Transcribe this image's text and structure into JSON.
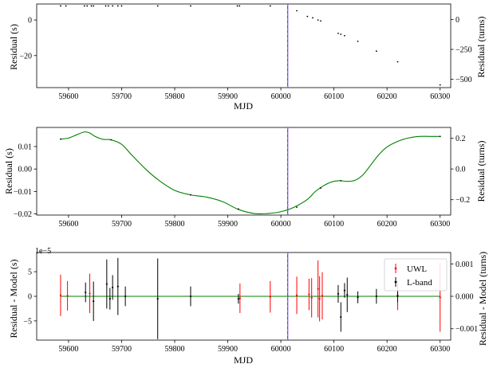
{
  "chart_data": [
    {
      "type": "scatter",
      "xlabel": "MJD",
      "ylabel": "Residual (s)",
      "ylabel_right": "Residual (turns)",
      "xlim": [
        59540,
        60320
      ],
      "ylim": [
        -38,
        9
      ],
      "ylim_right": [
        -570,
        130
      ],
      "xticks": [
        "59600",
        "59700",
        "59800",
        "59900",
        "60000",
        "60100",
        "60200",
        "60300"
      ],
      "yticks": [
        "0",
        "−20"
      ],
      "yticks_right": [
        "0",
        "−250",
        "−500"
      ],
      "marker_line_mjd": 60013,
      "series": [
        {
          "x": [
            59585,
            59595,
            59630,
            59635,
            59643,
            59647,
            59670,
            59675,
            59683,
            59693,
            59700,
            59768,
            59830,
            59918,
            59922,
            59980
          ],
          "y": [
            7.9,
            7.9,
            7.9,
            7.9,
            7.9,
            7.9,
            7.9,
            7.9,
            7.9,
            7.9,
            7.9,
            7.9,
            7.9,
            7.9,
            7.9,
            7.9
          ]
        },
        {
          "x": [
            60030,
            60050,
            60060,
            60070,
            60075,
            60108,
            60113,
            60120,
            60145,
            60180,
            60220,
            60300
          ],
          "y": [
            5.2,
            2.0,
            1.2,
            0,
            -0.5,
            -7.5,
            -8.0,
            -8.8,
            -12.0,
            -17.5,
            -23.5,
            -36.5
          ]
        }
      ]
    },
    {
      "type": "line",
      "xlabel": "",
      "ylabel": "Residual (s)",
      "ylabel_right": "Residual (turns)",
      "xlim": [
        59540,
        60320
      ],
      "ylim": [
        -0.0205,
        0.0185
      ],
      "ylim_right": [
        -0.3,
        0.27
      ],
      "xticks": [
        "59600",
        "59700",
        "59800",
        "59900",
        "60000",
        "60100",
        "60200",
        "60300"
      ],
      "yticks": [
        "0.01",
        "0.00",
        "−0.01",
        "−0.02"
      ],
      "yticks_right": [
        "0.2",
        "0.0",
        "−0.2"
      ],
      "marker_line_mjd": 60013,
      "model_x": [
        59585,
        59600,
        59615,
        59630,
        59640,
        59650,
        59665,
        59680,
        59700,
        59720,
        59745,
        59770,
        59800,
        59830,
        59860,
        59890,
        59920,
        59950,
        59975,
        60000,
        60025,
        60050,
        60065,
        60080,
        60095,
        60110,
        60125,
        60140,
        60155,
        60170,
        60185,
        60200,
        60220,
        60240,
        60260,
        60280,
        60300
      ],
      "model_y": [
        0.0133,
        0.0138,
        0.0152,
        0.0165,
        0.016,
        0.0145,
        0.0132,
        0.013,
        0.011,
        0.006,
        0.0,
        -0.005,
        -0.0095,
        -0.0115,
        -0.0125,
        -0.0145,
        -0.018,
        -0.0198,
        -0.0198,
        -0.019,
        -0.017,
        -0.0135,
        -0.01,
        -0.0075,
        -0.0058,
        -0.0052,
        -0.0055,
        -0.005,
        -0.0025,
        0.002,
        0.0065,
        0.0098,
        0.0123,
        0.0138,
        0.0145,
        0.0145,
        0.0145
      ],
      "data_x": [
        59585,
        59680,
        59830,
        59920,
        60030,
        60075,
        60113,
        60300
      ],
      "data_y": [
        0.0133,
        0.013,
        -0.0115,
        -0.0178,
        -0.017,
        -0.0085,
        -0.0052,
        0.0145
      ]
    },
    {
      "type": "scatter",
      "xlabel": "MJD",
      "ylabel": "Residual - Model (s)",
      "ylabel_right": "Residual - Model (turns)",
      "offset_text": "1e−5",
      "xlim": [
        59540,
        60320
      ],
      "ylim": [
        -8.9,
        8.9
      ],
      "ylim_right": [
        -0.00135,
        0.00135
      ],
      "xticks": [
        "59600",
        "59700",
        "59800",
        "59900",
        "60000",
        "60100",
        "60200",
        "60300"
      ],
      "yticks": [
        "5",
        "0",
        "−5"
      ],
      "yticks_right": [
        "0.001",
        "0.000",
        "−0.001"
      ],
      "marker_line_mjd": 60013,
      "legend_position": "upper right",
      "series": [
        {
          "name": "UWL",
          "color": "#ff0000",
          "x": [
            59585,
            59598,
            59640,
            59923,
            59980,
            60030,
            60053,
            60058,
            60070,
            60073,
            60078,
            60220,
            60300
          ],
          "y": [
            0.2,
            0.1,
            0.6,
            -0.4,
            -0.1,
            0.2,
            0.4,
            -0.3,
            1.5,
            -0.5,
            0.1,
            0.2,
            -0.2
          ],
          "err": [
            4.2,
            3.0,
            4.0,
            3.0,
            3.2,
            3.8,
            3.2,
            4.0,
            5.8,
            4.6,
            4.8,
            3.0,
            7.0
          ]
        },
        {
          "name": "L-band",
          "color": "#000000",
          "x": [
            59632,
            59647,
            59672,
            59678,
            59683,
            59693,
            59707,
            59768,
            59830,
            59920,
            60108,
            60113,
            60120,
            60125,
            60145,
            60180,
            60220
          ],
          "y": [
            0.8,
            -1.0,
            2.5,
            -0.5,
            1.8,
            2.0,
            0.0,
            -0.5,
            0.0,
            -0.5,
            0.5,
            -4.2,
            1.2,
            0.3,
            -0.2,
            0.0,
            0.0
          ],
          "err": [
            2.0,
            4.0,
            5.0,
            2.2,
            2.5,
            5.8,
            2.0,
            8.2,
            2.0,
            1.0,
            1.8,
            3.0,
            1.5,
            3.5,
            1.2,
            1.5,
            1.2
          ]
        }
      ],
      "model_color": "#008000"
    }
  ],
  "colors": {
    "model_line": "#008000",
    "marker_line_a": "#0000cc",
    "marker_line_b": "#cc44cc",
    "uwl": "#ff0000",
    "lband": "#000000"
  }
}
